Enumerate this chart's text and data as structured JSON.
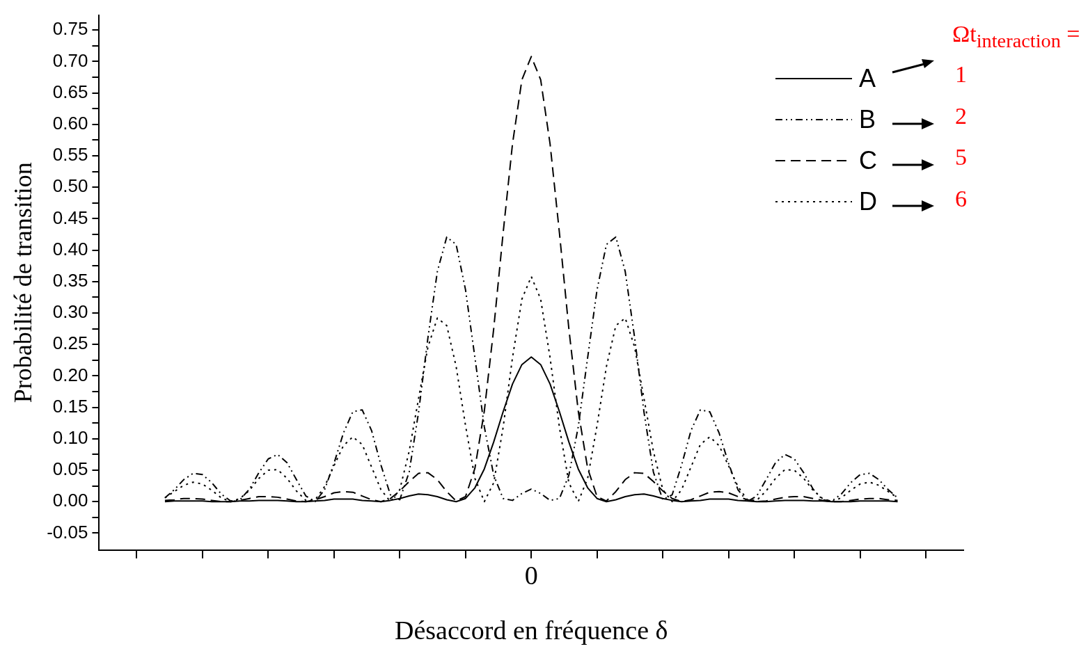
{
  "chart_data": {
    "type": "line",
    "xlabel": "Désaccord en fréquence δ",
    "ylabel": "Probabilité de transition",
    "categories": [
      null,
      null,
      null,
      null,
      null,
      null,
      null,
      null,
      null,
      null,
      null,
      null,
      null,
      null,
      null,
      null,
      null,
      null,
      null,
      null,
      null,
      null,
      null,
      null,
      null,
      null,
      null,
      null,
      null,
      null,
      null,
      null,
      null,
      null,
      null,
      null,
      null,
      null,
      null,
      null,
      null,
      null,
      null,
      null,
      null,
      null,
      "0",
      null,
      null,
      null,
      null,
      null,
      null,
      null,
      null,
      null,
      null,
      null,
      null,
      null,
      null,
      null,
      null,
      null,
      null,
      null,
      null,
      null,
      null,
      null,
      null,
      null,
      null,
      null,
      null,
      null,
      null,
      null,
      null,
      null,
      null,
      null,
      null,
      null,
      null,
      null,
      null,
      null,
      null,
      null,
      null,
      null,
      null
    ],
    "series": [
      {
        "name": "A",
        "color": "#000000",
        "line_style": "solid",
        "values": [
          null,
          null,
          null,
          null,
          null,
          null,
          null,
          0,
          0.001,
          0.001,
          0.001,
          0.001,
          0,
          0,
          0,
          0.001,
          0.001,
          0.002,
          0.002,
          0.002,
          0.001,
          0,
          0,
          0.001,
          0.002,
          0.004,
          0.004,
          0.004,
          0.002,
          0.001,
          0,
          0.002,
          0.005,
          0.009,
          0.012,
          0.011,
          0.008,
          0.003,
          0,
          0.005,
          0.022,
          0.052,
          0.095,
          0.143,
          0.187,
          0.218,
          0.23,
          0.218,
          0.187,
          0.143,
          0.095,
          0.052,
          0.022,
          0.005,
          0,
          0.003,
          0.008,
          0.011,
          0.012,
          0.009,
          0.005,
          0.002,
          0,
          0.001,
          0.002,
          0.004,
          0.004,
          0.004,
          0.002,
          0.001,
          0,
          0,
          0.001,
          0.002,
          0.002,
          0.002,
          0.001,
          0.001,
          0,
          0,
          0,
          0.001,
          0.001,
          0.001,
          0.001,
          0,
          null,
          null,
          null,
          null,
          null,
          null,
          null
        ]
      },
      {
        "name": "B",
        "color": "#000000",
        "line_style": "dashdot",
        "values": [
          null,
          null,
          null,
          null,
          null,
          null,
          null,
          0.006,
          0.019,
          0.035,
          0.045,
          0.043,
          0.03,
          0.012,
          0.001,
          0.003,
          0.02,
          0.046,
          0.068,
          0.075,
          0.062,
          0.035,
          0.009,
          0,
          0.019,
          0.061,
          0.109,
          0.143,
          0.146,
          0.113,
          0.058,
          0.011,
          0.003,
          0.047,
          0.142,
          0.261,
          0.366,
          0.421,
          0.409,
          0.337,
          0.229,
          0.119,
          0.042,
          0.005,
          0.002,
          0.013,
          0.02,
          0.013,
          0.002,
          0.005,
          0.042,
          0.119,
          0.229,
          0.337,
          0.409,
          0.421,
          0.366,
          0.261,
          0.142,
          0.047,
          0.003,
          0.011,
          0.058,
          0.113,
          0.146,
          0.143,
          0.109,
          0.061,
          0.019,
          0,
          0.009,
          0.035,
          0.062,
          0.075,
          0.068,
          0.046,
          0.02,
          0.003,
          0.001,
          0.012,
          0.03,
          0.043,
          0.045,
          0.035,
          0.019,
          0.006,
          null,
          null,
          null,
          null,
          null,
          null,
          null
        ]
      },
      {
        "name": "C",
        "color": "#000000",
        "line_style": "dashed",
        "values": [
          null,
          null,
          null,
          null,
          null,
          null,
          null,
          0.002,
          0.003,
          0.005,
          0.005,
          0.004,
          0.002,
          0,
          0,
          0.002,
          0.005,
          0.008,
          0.008,
          0.007,
          0.004,
          0.001,
          0,
          0.003,
          0.008,
          0.014,
          0.016,
          0.015,
          0.009,
          0.003,
          0,
          0.005,
          0.017,
          0.032,
          0.045,
          0.046,
          0.035,
          0.016,
          0.001,
          0.008,
          0.053,
          0.144,
          0.275,
          0.427,
          0.569,
          0.671,
          0.708,
          0.671,
          0.569,
          0.427,
          0.275,
          0.144,
          0.053,
          0.008,
          0.001,
          0.016,
          0.035,
          0.046,
          0.045,
          0.032,
          0.017,
          0.005,
          0,
          0.003,
          0.009,
          0.015,
          0.016,
          0.014,
          0.008,
          0.003,
          0,
          0.001,
          0.004,
          0.007,
          0.008,
          0.008,
          0.005,
          0.002,
          0,
          0,
          0.002,
          0.004,
          0.005,
          0.005,
          0.003,
          0.002,
          null,
          null,
          null,
          null,
          null,
          null,
          null
        ]
      },
      {
        "name": "D",
        "color": "#000000",
        "line_style": "dotted",
        "values": [
          null,
          null,
          null,
          null,
          null,
          null,
          null,
          0.006,
          0.016,
          0.026,
          0.031,
          0.028,
          0.018,
          0.006,
          0,
          0.005,
          0.018,
          0.037,
          0.05,
          0.051,
          0.037,
          0.017,
          0.002,
          0.003,
          0.024,
          0.057,
          0.089,
          0.103,
          0.091,
          0.055,
          0.019,
          0,
          0.019,
          0.08,
          0.164,
          0.246,
          0.292,
          0.28,
          0.215,
          0.121,
          0.037,
          0,
          0.03,
          0.118,
          0.229,
          0.322,
          0.358,
          0.322,
          0.229,
          0.118,
          0.03,
          0,
          0.037,
          0.121,
          0.215,
          0.28,
          0.292,
          0.246,
          0.164,
          0.08,
          0.019,
          0,
          0.019,
          0.055,
          0.091,
          0.103,
          0.089,
          0.057,
          0.024,
          0.003,
          0.002,
          0.017,
          0.037,
          0.051,
          0.05,
          0.037,
          0.018,
          0.005,
          0,
          0.006,
          0.018,
          0.028,
          0.031,
          0.026,
          0.016,
          0.006,
          null,
          null,
          null,
          null,
          null,
          null,
          null
        ]
      }
    ],
    "ylim": [
      -0.077,
      0.774
    ],
    "yticks": [
      {
        "value": -0.05,
        "label": "-0.05"
      },
      {
        "value": -0.025,
        "label": null
      },
      {
        "value": 0,
        "label": "0.00"
      },
      {
        "value": 0.025,
        "label": null
      },
      {
        "value": 0.05,
        "label": "0.05"
      },
      {
        "value": 0.075,
        "label": null
      },
      {
        "value": 0.1,
        "label": "0.10"
      },
      {
        "value": 0.125,
        "label": null
      },
      {
        "value": 0.15,
        "label": "0.15"
      },
      {
        "value": 0.175,
        "label": null
      },
      {
        "value": 0.2,
        "label": "0.20"
      },
      {
        "value": 0.225,
        "label": null
      },
      {
        "value": 0.25,
        "label": "0.25"
      },
      {
        "value": 0.275,
        "label": null
      },
      {
        "value": 0.3,
        "label": "0.30"
      },
      {
        "value": 0.325,
        "label": null
      },
      {
        "value": 0.35,
        "label": "0.35"
      },
      {
        "value": 0.375,
        "label": null
      },
      {
        "value": 0.4,
        "label": "0.40"
      },
      {
        "value": 0.425,
        "label": null
      },
      {
        "value": 0.45,
        "label": "0.45"
      },
      {
        "value": 0.475,
        "label": null
      },
      {
        "value": 0.5,
        "label": "0.50"
      },
      {
        "value": 0.525,
        "label": null
      },
      {
        "value": 0.55,
        "label": "0.55"
      },
      {
        "value": 0.575,
        "label": null
      },
      {
        "value": 0.6,
        "label": "0.60"
      },
      {
        "value": 0.625,
        "label": null
      },
      {
        "value": 0.65,
        "label": "0.65"
      },
      {
        "value": 0.675,
        "label": null
      },
      {
        "value": 0.7,
        "label": "0.70"
      },
      {
        "value": 0.725,
        "label": null
      },
      {
        "value": 0.75,
        "label": "0.75"
      }
    ],
    "grid": false,
    "legend": "top right",
    "marker": "none",
    "annotations": [
      "Ωt$_{interaction}$ =",
      "1",
      "2",
      "5",
      "6"
    ]
  }
}
